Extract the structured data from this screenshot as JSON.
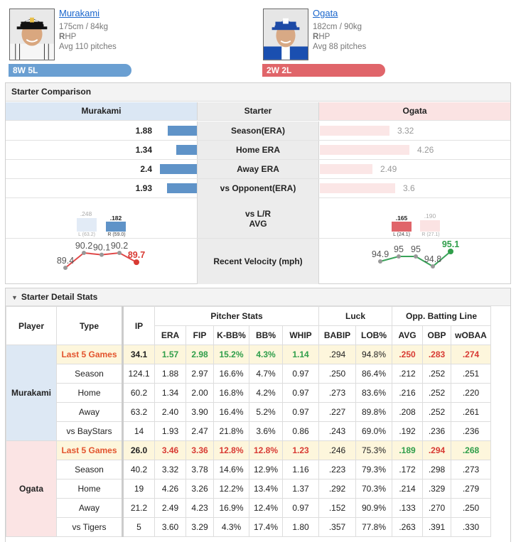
{
  "header": {
    "left": {
      "name": "Murakami",
      "body": "175cm / 84kg",
      "hand_letter": "R",
      "hand_rest": "HP",
      "avg_pitches": "Avg 110 pitches",
      "record": "8W 5L"
    },
    "right": {
      "name": "Ogata",
      "body": "182cm / 90kg",
      "hand_letter": "R",
      "hand_rest": "HP",
      "avg_pitches": "Avg 88 pitches",
      "record": "2W 2L"
    }
  },
  "comparison": {
    "title": "Starter Comparison",
    "col_left": "Murakami",
    "col_mid": "Starter",
    "col_right": "Ogata",
    "rows": [
      {
        "label": "Season(ERA)",
        "left": "1.88",
        "right": "3.32"
      },
      {
        "label": "Home ERA",
        "left": "1.34",
        "right": "4.26"
      },
      {
        "label": "Away ERA",
        "left": "2.4",
        "right": "2.49"
      },
      {
        "label": "vs Opponent(ERA)",
        "left": "1.93",
        "right": "3.6"
      }
    ],
    "lr_label1": "vs L/R",
    "lr_label2": "AVG",
    "lr_left": {
      "l_avg": ".248",
      "l_ip": "L (63.2)",
      "r_avg": ".182",
      "r_ip": "R (59.0)"
    },
    "lr_right": {
      "l_avg": ".165",
      "l_ip": "L (24.1)",
      "r_avg": ".190",
      "r_ip": "R (27.1)"
    },
    "velocity_label": "Recent Velocity (mph)",
    "velocity_left": [
      "89.4",
      "90.2",
      "90.1",
      "90.2",
      "89.7"
    ],
    "velocity_right": [
      "94.9",
      "95",
      "95",
      "94.8",
      "95.1"
    ]
  },
  "detail": {
    "title": "Starter Detail Stats",
    "h_player": "Player",
    "h_type": "Type",
    "h_ip": "IP",
    "h_group1": "Pitcher Stats",
    "h_group2": "Luck",
    "h_group3": "Opp. Batting Line",
    "cols": [
      "ERA",
      "FIP",
      "K-BB%",
      "BB%",
      "WHIP",
      "BABIP",
      "LOB%",
      "AVG",
      "OBP",
      "wOBAA"
    ],
    "players": [
      {
        "name": "Murakami",
        "rows": [
          {
            "type": "Last 5 Games",
            "ip": "34.1",
            "v": [
              "1.57",
              "2.98",
              "15.2%",
              "4.3%",
              "1.14",
              ".294",
              "94.8%",
              ".250",
              ".283",
              ".274"
            ]
          },
          {
            "type": "Season",
            "ip": "124.1",
            "v": [
              "1.88",
              "2.97",
              "16.6%",
              "4.7%",
              "0.97",
              ".250",
              "86.4%",
              ".212",
              ".252",
              ".251"
            ]
          },
          {
            "type": "Home",
            "ip": "60.2",
            "v": [
              "1.34",
              "2.00",
              "16.8%",
              "4.2%",
              "0.97",
              ".273",
              "83.6%",
              ".216",
              ".252",
              ".220"
            ]
          },
          {
            "type": "Away",
            "ip": "63.2",
            "v": [
              "2.40",
              "3.90",
              "16.4%",
              "5.2%",
              "0.97",
              ".227",
              "89.8%",
              ".208",
              ".252",
              ".261"
            ]
          },
          {
            "type": "vs BayStars",
            "ip": "14",
            "v": [
              "1.93",
              "2.47",
              "21.8%",
              "3.6%",
              "0.86",
              ".243",
              "69.0%",
              ".192",
              ".236",
              ".236"
            ]
          }
        ]
      },
      {
        "name": "Ogata",
        "rows": [
          {
            "type": "Last 5 Games",
            "ip": "26.0",
            "v": [
              "3.46",
              "3.36",
              "12.8%",
              "12.8%",
              "1.23",
              ".246",
              "75.3%",
              ".189",
              ".294",
              ".268"
            ]
          },
          {
            "type": "Season",
            "ip": "40.2",
            "v": [
              "3.32",
              "3.78",
              "14.6%",
              "12.9%",
              "1.16",
              ".223",
              "79.3%",
              ".172",
              ".298",
              ".273"
            ]
          },
          {
            "type": "Home",
            "ip": "19",
            "v": [
              "4.26",
              "3.26",
              "12.2%",
              "13.4%",
              "1.37",
              ".292",
              "70.3%",
              ".214",
              ".329",
              ".279"
            ]
          },
          {
            "type": "Away",
            "ip": "21.2",
            "v": [
              "2.49",
              "4.23",
              "16.9%",
              "12.4%",
              "0.97",
              ".152",
              "90.9%",
              ".133",
              ".270",
              ".250"
            ]
          },
          {
            "type": "vs Tigers",
            "ip": "5",
            "v": [
              "3.60",
              "3.29",
              "4.3%",
              "17.4%",
              "1.80",
              ".357",
              "77.8%",
              ".263",
              ".391",
              ".330"
            ]
          }
        ]
      }
    ]
  },
  "colors": {
    "blue": "#5f93c8",
    "red": "#e0656a",
    "green": "#2f9e4a"
  }
}
